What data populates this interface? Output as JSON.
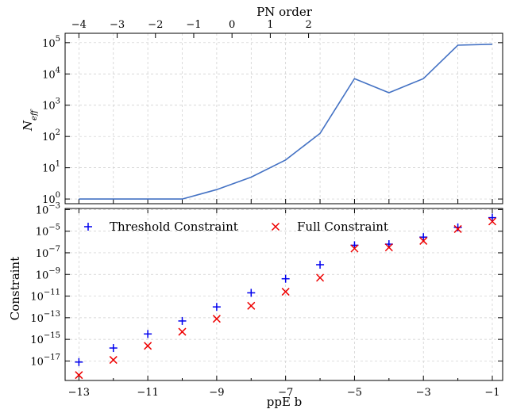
{
  "chart_data": [
    {
      "type": "line",
      "xlabel_top": "PN order",
      "top_ticks": [
        "−4",
        "−3",
        "−2",
        "−1",
        "0",
        "1",
        "2"
      ],
      "top_tick_b": [
        -13,
        -11.8889,
        -10.7778,
        -9.6667,
        -8.5556,
        -7.4444,
        -6.3333
      ],
      "ylabel": "N_eff",
      "ylabel_main": "N",
      "ylabel_sub": "eff",
      "y_scale": "log",
      "ylim_log10": [
        -0.15,
        5.3
      ],
      "y_ticks": [
        {
          "exp": 0,
          "base": "10",
          "sup": "0"
        },
        {
          "exp": 1,
          "base": "10",
          "sup": "1"
        },
        {
          "exp": 2,
          "base": "10",
          "sup": "2"
        },
        {
          "exp": 3,
          "base": "10",
          "sup": "3"
        },
        {
          "exp": 4,
          "base": "10",
          "sup": "4"
        },
        {
          "exp": 5,
          "base": "10",
          "sup": "5"
        }
      ],
      "grid": true,
      "color": "#4472c4",
      "x": [
        -13,
        -12,
        -11,
        -10,
        -9,
        -8,
        -7,
        -6,
        -5,
        -4,
        -3,
        -2,
        -1
      ],
      "y_log10": [
        0,
        0,
        0,
        0,
        0.3,
        0.7,
        1.25,
        2.1,
        3.85,
        3.4,
        3.85,
        4.92,
        4.95
      ]
    },
    {
      "type": "scatter",
      "xlabel": "ppE b",
      "ylabel": "Constraint",
      "y_scale": "log",
      "ylim_log10": [
        -18.8,
        -2.9
      ],
      "xlim": [
        -13.4,
        -0.7
      ],
      "x_ticks": [
        {
          "value": -13,
          "label": "−13"
        },
        {
          "value": -11,
          "label": "−11"
        },
        {
          "value": -9,
          "label": "−9"
        },
        {
          "value": -7,
          "label": "−7"
        },
        {
          "value": -5,
          "label": "−5"
        },
        {
          "value": -3,
          "label": "−3"
        },
        {
          "value": -1,
          "label": "−1"
        }
      ],
      "y_ticks": [
        {
          "exp": -17,
          "base": "10",
          "sup": "−17"
        },
        {
          "exp": -15,
          "base": "10",
          "sup": "−15"
        },
        {
          "exp": -13,
          "base": "10",
          "sup": "−13"
        },
        {
          "exp": -11,
          "base": "10",
          "sup": "−11"
        },
        {
          "exp": -9,
          "base": "10",
          "sup": "−9"
        },
        {
          "exp": -7,
          "base": "10",
          "sup": "−7"
        },
        {
          "exp": -5,
          "base": "10",
          "sup": "−5"
        },
        {
          "exp": -3,
          "base": "10",
          "sup": "−3"
        }
      ],
      "grid": true,
      "legend": "top-left",
      "series": [
        {
          "name": "Threshold Constraint",
          "marker": "plus",
          "color": "#0000ee",
          "x": [
            -13,
            -12,
            -11,
            -10,
            -9,
            -8,
            -7,
            -6,
            -5,
            -4,
            -3,
            -2,
            -1
          ],
          "y_log10": [
            -17.1,
            -15.8,
            -14.5,
            -13.3,
            -12.0,
            -10.7,
            -9.4,
            -8.1,
            -6.3,
            -6.2,
            -5.55,
            -4.65,
            -3.75
          ]
        },
        {
          "name": "Full Constraint",
          "marker": "x",
          "color": "#ee0000",
          "x": [
            -13,
            -12,
            -11,
            -10,
            -9,
            -8,
            -7,
            -6,
            -5,
            -4,
            -3,
            -2,
            -1
          ],
          "y_log10": [
            -18.3,
            -16.9,
            -15.6,
            -14.3,
            -13.1,
            -11.9,
            -10.6,
            -9.3,
            -6.6,
            -6.5,
            -5.9,
            -4.8,
            -4.1
          ]
        }
      ]
    }
  ]
}
